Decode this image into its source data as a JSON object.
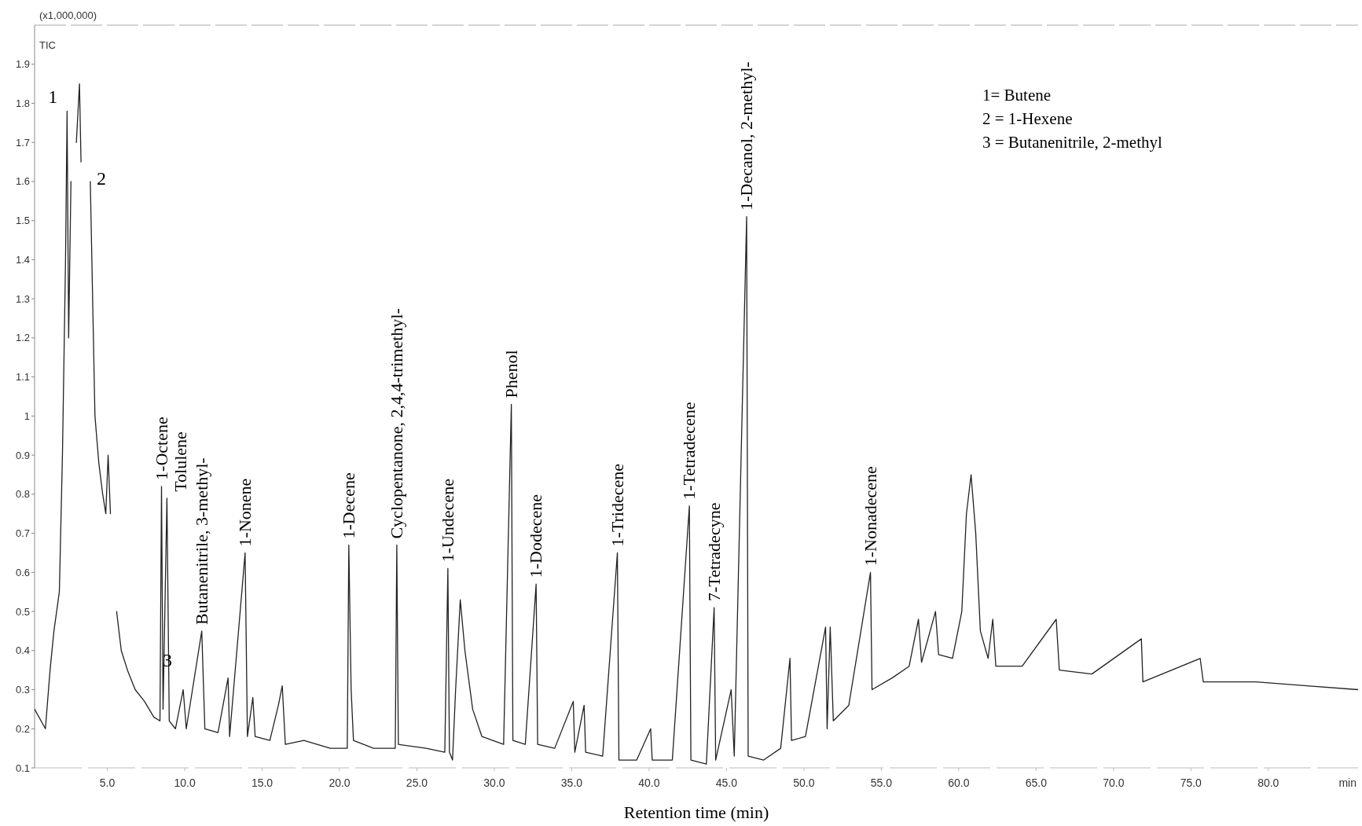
{
  "chart_data": {
    "type": "line",
    "xlabel": "Retention time (min)",
    "ylabel": "(x1,000,000)",
    "xlim": [
      0.3,
      85.8
    ],
    "ylim": [
      0.1,
      2.0
    ],
    "xticks": [
      {
        "value": 5,
        "label": "5.0"
      },
      {
        "value": 10,
        "label": "10.0"
      },
      {
        "value": 15,
        "label": "15.0"
      },
      {
        "value": 20,
        "label": "20.0"
      },
      {
        "value": 25,
        "label": "25.0"
      },
      {
        "value": 30,
        "label": "30.0"
      },
      {
        "value": 35,
        "label": "35.0"
      },
      {
        "value": 40,
        "label": "40.0"
      },
      {
        "value": 45,
        "label": "45.0"
      },
      {
        "value": 50,
        "label": "50.0"
      },
      {
        "value": 55,
        "label": "55.0"
      },
      {
        "value": 60,
        "label": "60.0"
      },
      {
        "value": 65,
        "label": "65.0"
      },
      {
        "value": 70,
        "label": "70.0"
      },
      {
        "value": 75,
        "label": "75.0"
      },
      {
        "value": 80,
        "label": "80.0"
      }
    ],
    "yticks": [
      0.1,
      0.2,
      0.3,
      0.4,
      0.5,
      0.6,
      0.7,
      0.8,
      0.9,
      1.0,
      1.1,
      1.2,
      1.3,
      1.4,
      1.5,
      1.6,
      1.7,
      1.8,
      1.9
    ],
    "grid": false,
    "marker": "none",
    "line_style": "solid",
    "series": [
      {
        "color": "#222222",
        "x": [
          0.3,
          1.0,
          1.3,
          1.55,
          1.9,
          2.1,
          2.3,
          2.4,
          2.5,
          2.65,
          2.9,
          3.0,
          3.2,
          3.3,
          3.55,
          3.65,
          3.8,
          3.9,
          4.2,
          4.45,
          4.7,
          4.9,
          5.05,
          5.2,
          5.35,
          5.45,
          5.6,
          5.9,
          6.3,
          6.8,
          7.4,
          8.0,
          8.4,
          8.5,
          8.6,
          8.85,
          9.0,
          9.4,
          9.9,
          10.1,
          11.1,
          11.3,
          12.15,
          12.8,
          12.9,
          13.9,
          14.05,
          14.4,
          14.55,
          15.5,
          16.05,
          16.3,
          16.5,
          17.7,
          19.4,
          20.5,
          20.6,
          20.75,
          20.9,
          22.2,
          23.6,
          23.7,
          23.8,
          25.6,
          26.8,
          27.0,
          27.1,
          27.3,
          27.5,
          27.8,
          28.1,
          28.6,
          29.2,
          30.6,
          31.1,
          31.2,
          32.0,
          32.7,
          32.8,
          33.9,
          35.1,
          35.2,
          35.8,
          35.9,
          37.0,
          37.95,
          38.05,
          39.2,
          40.1,
          40.2,
          41.5,
          42.6,
          42.7,
          43.7,
          44.2,
          44.3,
          45.3,
          45.5,
          46.3,
          46.4,
          47.4,
          48.5,
          49.1,
          49.2,
          50.1,
          51.4,
          51.5,
          51.7,
          51.9,
          52.9,
          54.3,
          54.4,
          55.7,
          56.8,
          57.4,
          57.6,
          58.5,
          58.7,
          59.6,
          60.2,
          60.5,
          60.8,
          61.1,
          61.4,
          61.9,
          62.2,
          62.4,
          64.1,
          66.3,
          66.5,
          68.6,
          71.8,
          71.9,
          75.6,
          75.8,
          79.2,
          82.5,
          85.8
        ],
        "values": [
          0.25,
          0.2,
          0.35,
          0.45,
          0.55,
          0.9,
          1.4,
          1.78,
          1.2,
          1.6,
          null,
          1.7,
          1.85,
          1.65,
          null,
          null,
          null,
          1.6,
          1.0,
          0.88,
          0.8,
          0.75,
          0.9,
          0.75,
          null,
          null,
          0.5,
          0.4,
          0.35,
          0.3,
          0.27,
          0.23,
          0.22,
          0.82,
          0.25,
          0.79,
          0.22,
          0.2,
          0.3,
          0.2,
          0.45,
          0.2,
          0.19,
          0.33,
          0.18,
          0.65,
          0.18,
          0.28,
          0.18,
          0.17,
          0.26,
          0.31,
          0.16,
          0.17,
          0.15,
          0.15,
          0.67,
          0.3,
          0.17,
          0.15,
          0.15,
          0.67,
          0.16,
          0.15,
          0.14,
          0.61,
          0.14,
          0.12,
          0.3,
          0.53,
          0.4,
          0.25,
          0.18,
          0.16,
          1.03,
          0.17,
          0.16,
          0.57,
          0.16,
          0.15,
          0.27,
          0.14,
          0.26,
          0.14,
          0.13,
          0.65,
          0.12,
          0.12,
          0.2,
          0.12,
          0.12,
          0.77,
          0.12,
          0.11,
          0.51,
          0.12,
          0.3,
          0.13,
          1.51,
          0.13,
          0.12,
          0.15,
          0.38,
          0.17,
          0.18,
          0.46,
          0.2,
          0.46,
          0.22,
          0.26,
          0.6,
          0.3,
          0.33,
          0.36,
          0.48,
          0.37,
          0.5,
          0.39,
          0.38,
          0.5,
          0.75,
          0.85,
          0.7,
          0.45,
          0.38,
          0.48,
          0.36,
          0.36,
          0.48,
          0.35,
          0.34,
          0.43,
          0.32,
          0.38,
          0.32,
          0.32,
          0.31,
          0.3
        ]
      }
    ],
    "annotations": [
      {
        "text": "1",
        "x": 2.4,
        "y": 1.78
      },
      {
        "text": "2",
        "x": 3.9,
        "y": 1.6
      },
      {
        "text": "3",
        "x": 9.9,
        "y": 0.3
      },
      {
        "text": "1-Octene",
        "x": 8.5,
        "y": 0.82
      },
      {
        "text": "Tolulene",
        "x": 8.85,
        "y": 0.79
      },
      {
        "text": "Butanenitrile, 3-methyl-",
        "x": 11.1,
        "y": 0.45
      },
      {
        "text": "1-Nonene",
        "x": 13.9,
        "y": 0.65
      },
      {
        "text": "1-Decene",
        "x": 20.6,
        "y": 0.67
      },
      {
        "text": "Cyclopentanone, 2,4,4-trimethyl-",
        "x": 23.7,
        "y": 0.67
      },
      {
        "text": "1-Undecene",
        "x": 27.0,
        "y": 0.61
      },
      {
        "text": "Phenol",
        "x": 31.1,
        "y": 1.03
      },
      {
        "text": "1-Dodecene",
        "x": 32.7,
        "y": 0.57
      },
      {
        "text": "1-Tridecene",
        "x": 37.95,
        "y": 0.65
      },
      {
        "text": "1-Tetradecene",
        "x": 42.6,
        "y": 0.77
      },
      {
        "text": "7-Tetradecyne",
        "x": 44.2,
        "y": 0.51
      },
      {
        "text": "1-Decanol, 2-methyl-",
        "x": 46.3,
        "y": 1.51
      },
      {
        "text": "1-Nonadecene",
        "x": 54.3,
        "y": 0.6
      },
      "1= Butene",
      "2 = 1-Hexene",
      "3 = Butanenitrile, 2-methyl",
      "TIC",
      "min"
    ]
  }
}
